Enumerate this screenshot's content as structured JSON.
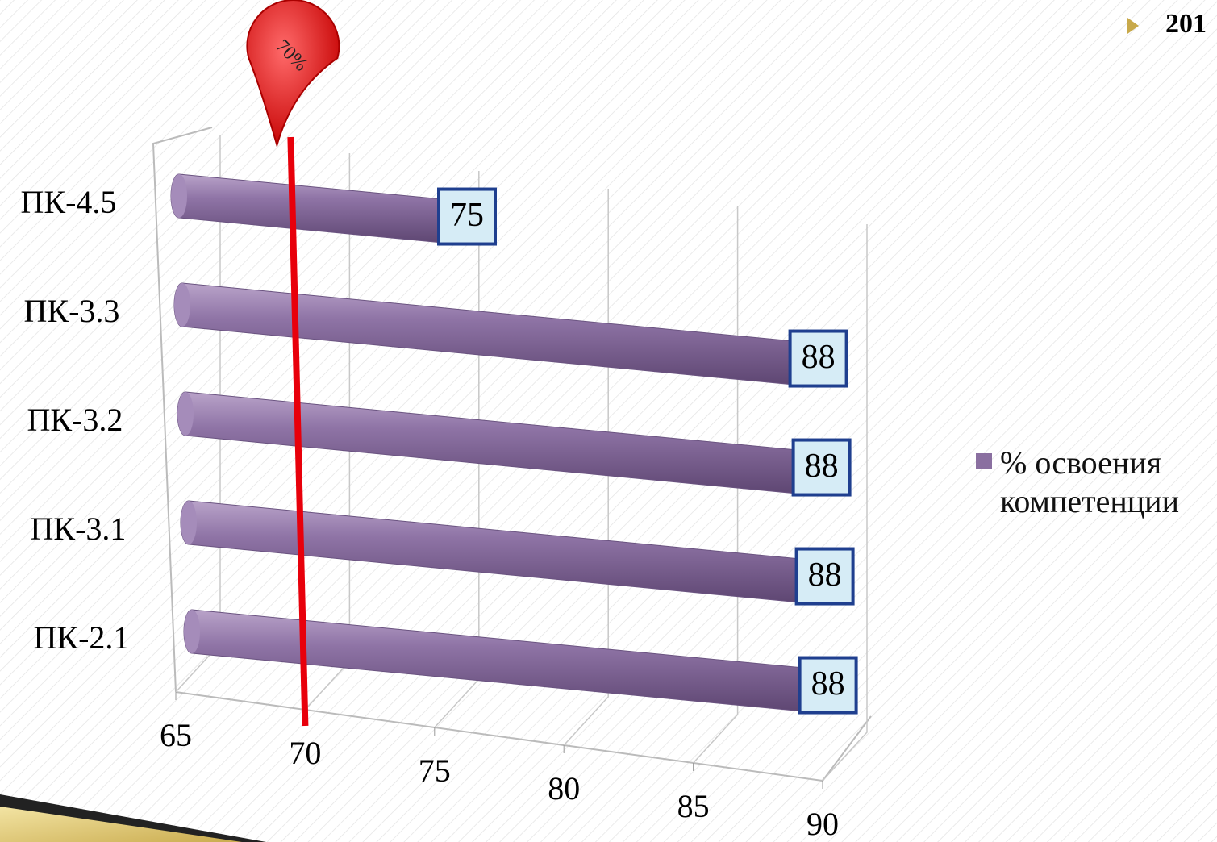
{
  "corner_text": "201",
  "chart_data": {
    "type": "bar3d-horizontal",
    "categories": [
      "ПК-4.5",
      "ПК-3.3",
      "ПК-3.2",
      "ПК-3.1",
      "ПК-2.1"
    ],
    "series": [
      {
        "name": "% освоения компетенции",
        "color": "#8a6fa0",
        "values": [
          75,
          88,
          88,
          88,
          88
        ]
      }
    ],
    "xlim": [
      65,
      90
    ],
    "xticks": [
      65,
      70,
      75,
      80,
      85,
      90
    ],
    "grid": true,
    "reference": {
      "value": 70,
      "label": "70%",
      "color": "#e8000b"
    },
    "legend": "right"
  }
}
